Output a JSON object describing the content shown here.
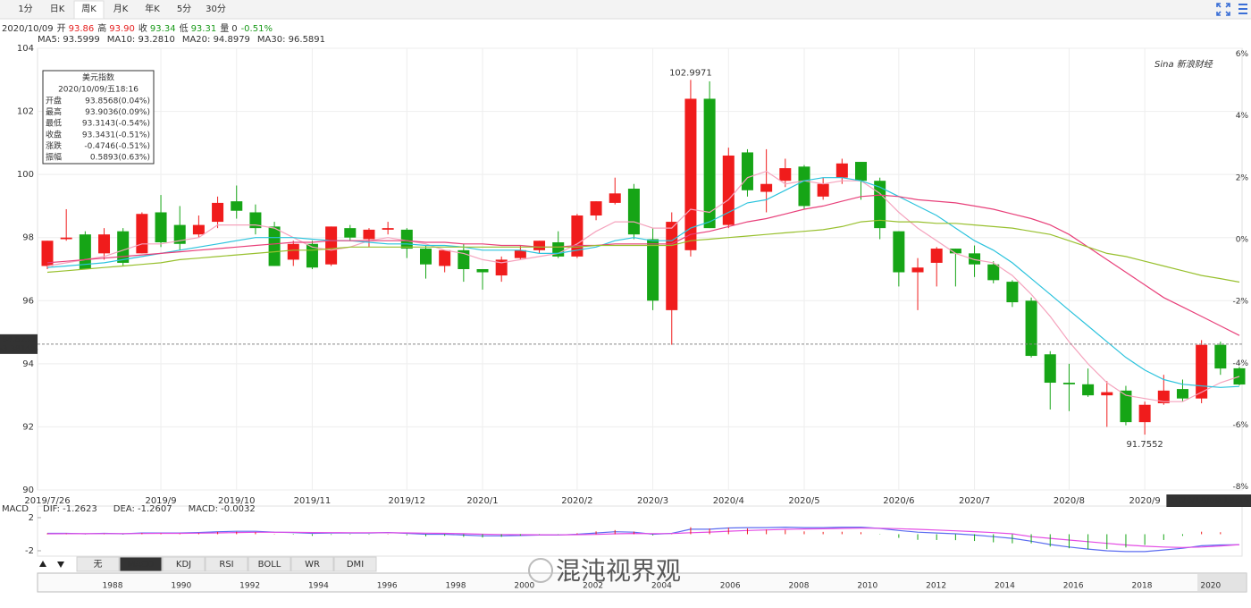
{
  "toolbar": {
    "tabs": [
      "1分",
      "日K",
      "周K",
      "月K",
      "年K",
      "5分",
      "30分"
    ],
    "active": "周K"
  },
  "info": {
    "date": "2020/10/09",
    "items": [
      {
        "label": "开",
        "value": "93.86",
        "color": "#e62020"
      },
      {
        "label": "高",
        "value": "93.90",
        "color": "#e62020"
      },
      {
        "label": "收",
        "value": "93.34",
        "color": "#1a9a1a"
      },
      {
        "label": "低",
        "value": "93.31",
        "color": "#1a9a1a"
      },
      {
        "label": "量",
        "value": "0",
        "color": "#333333"
      }
    ],
    "change": "-0.51%",
    "change_color": "#1a9a1a"
  },
  "tooltip": {
    "title": "美元指数",
    "time": "2020/10/09/五18:16",
    "rows": [
      {
        "label": "开盘",
        "value": "93.8568(0.04%)",
        "color": "#e62020"
      },
      {
        "label": "最高",
        "value": "93.9036(0.09%)",
        "color": "#e62020"
      },
      {
        "label": "最低",
        "value": "93.3143(-0.54%)",
        "color": "#1a9a1a"
      },
      {
        "label": "收盘",
        "value": "93.3431(-0.51%)",
        "color": "#1a9a1a"
      },
      {
        "label": "涨跌",
        "value": "-0.4746(-0.51%)",
        "color": "#1a9a1a"
      },
      {
        "label": "振幅",
        "value": "0.5893(0.63%)",
        "color": "#333333"
      }
    ]
  },
  "chart_data": [
    {
      "type": "candlestick",
      "categories": [
        "2019/7/26",
        null,
        null,
        null,
        null,
        null,
        "2019/9",
        null,
        null,
        null,
        "2019/10",
        null,
        null,
        null,
        "2019/11",
        null,
        null,
        null,
        null,
        "2019/12",
        null,
        null,
        null,
        "2020/1",
        null,
        null,
        null,
        null,
        "2020/2",
        null,
        null,
        null,
        "2020/3",
        null,
        null,
        null,
        "2020/4",
        null,
        null,
        null,
        "2020/5",
        null,
        null,
        null,
        null,
        "2020/6",
        null,
        null,
        null,
        "2020/7",
        null,
        null,
        null,
        null,
        "2020/8",
        null,
        null,
        null,
        "2020/9",
        null,
        null,
        null,
        null,
        "2020/10/09 18:16"
      ],
      "open": [
        97.1,
        97.95,
        98.1,
        97.5,
        98.2,
        97.5,
        98.8,
        98.4,
        98.1,
        98.5,
        99.15,
        98.8,
        98.35,
        97.3,
        97.8,
        97.15,
        98.3,
        97.95,
        98.25,
        98.25,
        97.65,
        97.1,
        97.6,
        97.0,
        96.8,
        97.35,
        97.6,
        97.85,
        97.4,
        98.7,
        99.1,
        99.55,
        97.95,
        95.7,
        97.6,
        102.4,
        98.4,
        100.7,
        99.45,
        99.8,
        100.25,
        99.3,
        99.9,
        100.4,
        99.8,
        98.2,
        96.9,
        97.2,
        97.65,
        97.5,
        97.15,
        96.6,
        96.0,
        94.3,
        93.4,
        93.35,
        93.0,
        93.15,
        92.15,
        92.75,
        93.2,
        92.9,
        94.6,
        93.8568
      ],
      "high": [
        97.9,
        98.9,
        98.2,
        98.3,
        98.3,
        98.8,
        99.35,
        99.0,
        98.7,
        99.3,
        99.65,
        99.05,
        98.5,
        97.9,
        97.9,
        98.35,
        98.4,
        98.3,
        98.5,
        98.3,
        97.75,
        97.6,
        97.8,
        97.0,
        97.4,
        97.75,
        97.9,
        98.2,
        98.75,
        99.15,
        99.9,
        99.7,
        98.3,
        98.8,
        102.9971,
        102.95,
        100.85,
        100.8,
        100.8,
        100.5,
        100.3,
        99.9,
        100.5,
        100.4,
        99.9,
        98.2,
        97.35,
        97.7,
        97.65,
        97.75,
        97.25,
        96.65,
        96.1,
        94.4,
        94.0,
        93.85,
        93.45,
        93.3,
        92.8,
        93.65,
        93.5,
        94.75,
        94.7,
        93.9036
      ],
      "low": [
        97.0,
        97.9,
        97.0,
        97.3,
        97.1,
        97.5,
        97.7,
        97.6,
        98.0,
        98.3,
        98.6,
        98.1,
        97.1,
        97.1,
        97.0,
        97.1,
        97.9,
        97.7,
        98.1,
        97.35,
        96.7,
        96.9,
        96.6,
        96.35,
        96.6,
        97.3,
        97.5,
        97.35,
        97.35,
        98.55,
        99.05,
        97.95,
        95.7,
        94.6,
        97.4,
        98.3,
        98.3,
        99.3,
        98.8,
        99.6,
        98.9,
        99.2,
        99.7,
        99.2,
        97.95,
        96.45,
        95.7,
        96.45,
        96.45,
        96.75,
        96.55,
        95.8,
        94.2,
        92.55,
        92.5,
        92.95,
        92.0,
        92.05,
        91.7552,
        92.7,
        92.8,
        92.75,
        93.65,
        93.3143
      ],
      "close": [
        97.9,
        98.0,
        97.0,
        98.1,
        97.2,
        98.75,
        97.85,
        97.8,
        98.4,
        99.1,
        98.85,
        98.3,
        97.1,
        97.8,
        97.05,
        98.35,
        98.0,
        98.25,
        98.3,
        97.65,
        97.15,
        97.6,
        97.0,
        96.9,
        97.3,
        97.6,
        97.9,
        97.4,
        98.7,
        99.15,
        99.4,
        98.1,
        96.0,
        98.5,
        102.4,
        98.3,
        100.6,
        99.5,
        99.7,
        100.2,
        99.0,
        99.7,
        100.35,
        99.8,
        98.3,
        96.9,
        97.05,
        97.65,
        97.5,
        97.15,
        96.65,
        95.95,
        94.25,
        93.4,
        93.35,
        93.0,
        93.1,
        92.15,
        92.7,
        93.15,
        92.9,
        94.6,
        93.85,
        93.3431
      ],
      "up_color": "#f01c1c",
      "down_color": "#16a516",
      "series": [
        {
          "name": "MA5: 93.5999",
          "color": "#f5a3bd",
          "values": [
            97.1,
            97.2,
            97.3,
            97.4,
            97.6,
            97.8,
            97.8,
            97.9,
            98.0,
            98.4,
            98.4,
            98.4,
            98.3,
            98.0,
            97.7,
            97.6,
            97.7,
            97.9,
            98.0,
            97.9,
            97.8,
            97.6,
            97.5,
            97.3,
            97.2,
            97.3,
            97.4,
            97.5,
            97.8,
            98.2,
            98.5,
            98.5,
            98.3,
            98.3,
            98.9,
            98.8,
            99.2,
            99.9,
            100.1,
            99.7,
            99.8,
            99.7,
            99.8,
            99.8,
            99.4,
            98.8,
            98.3,
            97.9,
            97.5,
            97.3,
            97.2,
            96.8,
            96.2,
            95.5,
            94.7,
            94.0,
            93.4,
            93.0,
            92.9,
            92.8,
            92.8,
            93.1,
            93.4,
            93.5999
          ]
        },
        {
          "name": "MA10: 93.2810",
          "color": "#2cc3dd",
          "values": [
            97.05,
            97.1,
            97.15,
            97.2,
            97.3,
            97.4,
            97.5,
            97.6,
            97.7,
            97.8,
            97.9,
            98.0,
            98.0,
            98.0,
            97.95,
            97.9,
            97.9,
            97.85,
            97.8,
            97.8,
            97.75,
            97.75,
            97.7,
            97.6,
            97.6,
            97.6,
            97.5,
            97.5,
            97.6,
            97.7,
            97.9,
            98.0,
            97.9,
            97.9,
            98.3,
            98.5,
            98.8,
            99.1,
            99.2,
            99.5,
            99.8,
            99.9,
            99.9,
            99.8,
            99.6,
            99.3,
            99.0,
            98.7,
            98.3,
            97.9,
            97.6,
            97.2,
            96.7,
            96.2,
            95.7,
            95.2,
            94.7,
            94.2,
            93.8,
            93.5,
            93.35,
            93.3,
            93.25,
            93.281
          ]
        },
        {
          "name": "MA20: 94.8979",
          "color": "#e8407a",
          "values": [
            97.2,
            97.25,
            97.3,
            97.35,
            97.4,
            97.45,
            97.5,
            97.55,
            97.6,
            97.65,
            97.7,
            97.75,
            97.8,
            97.85,
            97.85,
            97.9,
            97.9,
            97.9,
            97.9,
            97.9,
            97.85,
            97.85,
            97.8,
            97.8,
            97.75,
            97.75,
            97.7,
            97.7,
            97.75,
            97.75,
            97.8,
            97.8,
            97.8,
            97.8,
            98.1,
            98.2,
            98.35,
            98.5,
            98.6,
            98.75,
            98.9,
            99.0,
            99.15,
            99.3,
            99.35,
            99.3,
            99.2,
            99.15,
            99.1,
            99.0,
            98.9,
            98.75,
            98.6,
            98.4,
            98.1,
            97.7,
            97.3,
            96.9,
            96.5,
            96.1,
            95.8,
            95.5,
            95.2,
            94.8979
          ]
        },
        {
          "name": "MA30: 96.5891",
          "color": "#98c02e",
          "values": [
            96.9,
            96.95,
            97.0,
            97.05,
            97.1,
            97.15,
            97.2,
            97.3,
            97.35,
            97.4,
            97.45,
            97.5,
            97.55,
            97.6,
            97.6,
            97.65,
            97.7,
            97.7,
            97.7,
            97.7,
            97.7,
            97.7,
            97.7,
            97.7,
            97.7,
            97.7,
            97.7,
            97.7,
            97.7,
            97.75,
            97.75,
            97.75,
            97.75,
            97.75,
            97.9,
            97.95,
            98.0,
            98.05,
            98.1,
            98.15,
            98.2,
            98.25,
            98.35,
            98.5,
            98.55,
            98.5,
            98.5,
            98.45,
            98.45,
            98.4,
            98.35,
            98.3,
            98.2,
            98.1,
            97.9,
            97.7,
            97.5,
            97.4,
            97.25,
            97.1,
            96.95,
            96.8,
            96.7,
            96.5891
          ]
        }
      ],
      "ylim": [
        90,
        104
      ],
      "yticks": [
        90,
        92,
        94,
        96,
        98,
        100,
        102,
        104
      ],
      "y2lim": [
        -8.1,
        6.19
      ],
      "y2ticks": [
        {
          "value": 6,
          "label": "6%"
        },
        {
          "value": 4,
          "label": "4%"
        },
        {
          "value": 2,
          "label": "2%"
        },
        {
          "value": 0,
          "label": "0%"
        },
        {
          "value": -2,
          "label": "-2%"
        },
        {
          "value": -4,
          "label": "-4%"
        },
        {
          "value": -6,
          "label": "-6%"
        },
        {
          "value": -8,
          "label": "-8%"
        }
      ],
      "grid": true,
      "last_price": 94.6233,
      "last_change": "-3.3814%",
      "max_label": 102.9971,
      "min_label": 91.7552
    },
    {
      "type": "macd",
      "title": "MACD",
      "series": [
        {
          "name": "DIF: -1.2623",
          "color": "#5b6cf0",
          "values": [
            0.1,
            0.1,
            0.05,
            0.1,
            0.05,
            0.15,
            0.15,
            0.15,
            0.2,
            0.3,
            0.35,
            0.35,
            0.25,
            0.2,
            0.1,
            0.15,
            0.15,
            0.15,
            0.2,
            0.1,
            0.0,
            0.0,
            -0.1,
            -0.2,
            -0.2,
            -0.15,
            -0.1,
            -0.1,
            0.0,
            0.15,
            0.3,
            0.25,
            0.0,
            0.1,
            0.6,
            0.6,
            0.75,
            0.8,
            0.8,
            0.85,
            0.8,
            0.8,
            0.85,
            0.85,
            0.7,
            0.45,
            0.25,
            0.15,
            0.05,
            -0.1,
            -0.3,
            -0.5,
            -0.85,
            -1.25,
            -1.55,
            -1.8,
            -2.0,
            -2.1,
            -2.1,
            -1.9,
            -1.7,
            -1.4,
            -1.3,
            -1.2623
          ]
        },
        {
          "name": "DEA: -1.2607",
          "color": "#e44be4",
          "values": [
            0.05,
            0.06,
            0.06,
            0.07,
            0.07,
            0.08,
            0.1,
            0.11,
            0.13,
            0.16,
            0.2,
            0.23,
            0.23,
            0.23,
            0.2,
            0.19,
            0.18,
            0.18,
            0.18,
            0.16,
            0.13,
            0.1,
            0.06,
            0.0,
            -0.04,
            -0.06,
            -0.07,
            -0.08,
            -0.06,
            -0.02,
            0.05,
            0.09,
            0.07,
            0.08,
            0.18,
            0.26,
            0.36,
            0.45,
            0.52,
            0.59,
            0.63,
            0.66,
            0.7,
            0.73,
            0.72,
            0.67,
            0.59,
            0.5,
            0.41,
            0.31,
            0.19,
            0.05,
            -0.3,
            -0.5,
            -0.7,
            -0.9,
            -1.1,
            -1.3,
            -1.45,
            -1.55,
            -1.6,
            -1.55,
            -1.42,
            -1.2607
          ]
        },
        {
          "name": "MACD: -0.0032",
          "color": "#e62020",
          "type": "bar",
          "values": [
            0.1,
            0.08,
            -0.02,
            0.06,
            -0.04,
            0.14,
            0.1,
            0.08,
            0.14,
            0.28,
            0.3,
            0.24,
            0.04,
            -0.06,
            -0.2,
            -0.08,
            -0.06,
            -0.06,
            0.04,
            -0.12,
            -0.26,
            -0.2,
            -0.32,
            -0.4,
            -0.32,
            -0.18,
            -0.06,
            -0.04,
            0.12,
            0.34,
            0.5,
            0.32,
            -0.14,
            0.04,
            0.84,
            0.68,
            0.78,
            0.7,
            0.56,
            0.52,
            0.34,
            0.28,
            0.3,
            0.24,
            -0.04,
            -0.44,
            -0.68,
            -0.7,
            -0.72,
            -0.82,
            -0.98,
            -1.1,
            -1.1,
            -1.5,
            -1.7,
            -1.8,
            -1.8,
            -1.6,
            -1.3,
            -0.7,
            -0.2,
            0.3,
            0.24,
            -0.0032
          ]
        }
      ],
      "up_color": "#f01c1c",
      "down_color": "#16a516",
      "ylim": [
        -2.65,
        3.4
      ],
      "yticks": [
        -2,
        2
      ]
    }
  ],
  "indicator_tabs": {
    "tabs": [
      "无",
      "MACD",
      "KDJ",
      "RSI",
      "BOLL",
      "WR",
      "DMI"
    ],
    "active": "MACD"
  },
  "navigator": {
    "labels": [
      "1988",
      "1990",
      "1992",
      "1994",
      "1996",
      "1998",
      "2000",
      "2002",
      "2004",
      "2006",
      "2008",
      "2010",
      "2012",
      "2014",
      "2016",
      "2018",
      "2020"
    ]
  },
  "watermarks": [
    "Sina 新浪财经",
    "混沌视界观"
  ]
}
